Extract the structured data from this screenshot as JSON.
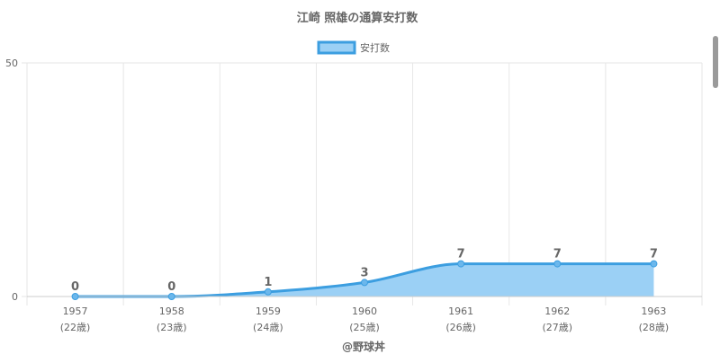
{
  "chart_data": {
    "type": "line",
    "title": "江崎 照雄の通算安打数",
    "categories": [
      "1957",
      "1958",
      "1959",
      "1960",
      "1961",
      "1962",
      "1963"
    ],
    "category_sublabels": [
      "(22歳)",
      "(23歳)",
      "(24歳)",
      "(25歳)",
      "(26歳)",
      "(27歳)",
      "(28歳)"
    ],
    "series": [
      {
        "name": "安打数",
        "values": [
          0,
          0,
          1,
          3,
          7,
          7,
          7
        ]
      }
    ],
    "fill": true,
    "xlabel": "@野球丼",
    "ylabel": "",
    "ylim": [
      0,
      50
    ],
    "y_ticks": [
      "0",
      "50"
    ],
    "grid": true,
    "legend": "top-center",
    "colors": {
      "line": "#3c9ee0",
      "fill": "#9bd0f5",
      "grid": "#e6e6e6",
      "text": "#666666"
    }
  }
}
